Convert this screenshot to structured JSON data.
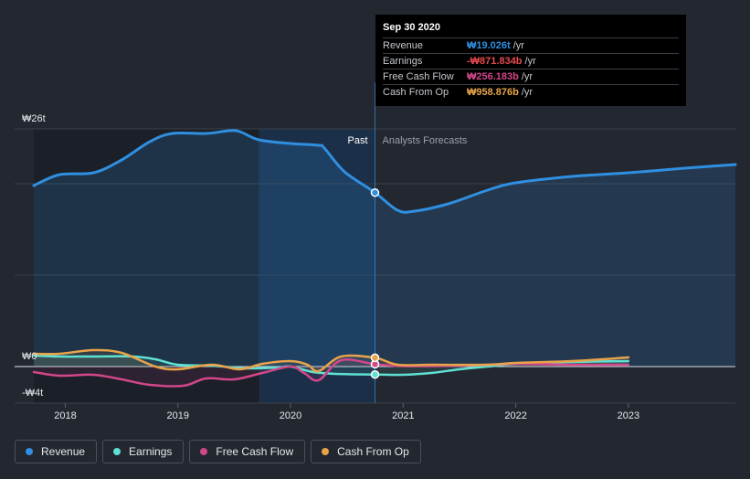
{
  "chart_data": {
    "type": "line",
    "x_unit": "year",
    "xlim": [
      2017.55,
      2023.95
    ],
    "ylim": [
      -4,
      26
    ],
    "y_tick_labels": [
      {
        "label": "₩26t",
        "value": 26
      },
      {
        "label": "₩0",
        "value": 0
      },
      {
        "label": "-₩4t",
        "value": -4
      }
    ],
    "x_ticks": [
      2018,
      2019,
      2020,
      2021,
      2022,
      2023
    ],
    "grid_values": [
      20,
      10,
      0
    ],
    "past_region": [
      2017.72,
      2020.75
    ],
    "highlight_region": [
      2019.72,
      2020.75
    ],
    "divider_x": 2020.75,
    "past_label": "Past",
    "forecast_label": "Analysts Forecasts",
    "series": [
      {
        "name": "Revenue",
        "color": "#2f8fe0",
        "fill": true,
        "points": [
          [
            2017.72,
            19.8
          ],
          [
            2017.95,
            21.0
          ],
          [
            2018.25,
            21.2
          ],
          [
            2018.5,
            22.6
          ],
          [
            2018.75,
            24.6
          ],
          [
            2018.95,
            25.5
          ],
          [
            2019.25,
            25.5
          ],
          [
            2019.45,
            25.8
          ],
          [
            2019.55,
            25.7
          ],
          [
            2019.72,
            24.8
          ],
          [
            2020.0,
            24.4
          ],
          [
            2020.25,
            24.2
          ],
          [
            2020.3,
            23.9
          ],
          [
            2020.48,
            21.3
          ],
          [
            2020.75,
            19.03
          ],
          [
            2020.95,
            17.1
          ],
          [
            2021.1,
            17.0
          ],
          [
            2021.4,
            17.8
          ],
          [
            2021.75,
            19.3
          ],
          [
            2022.0,
            20.1
          ],
          [
            2022.5,
            20.8
          ],
          [
            2023.0,
            21.2
          ],
          [
            2023.5,
            21.7
          ],
          [
            2023.95,
            22.1
          ]
        ]
      },
      {
        "name": "Earnings",
        "color": "#5fe0d2",
        "fill": false,
        "points": [
          [
            2017.72,
            1.2
          ],
          [
            2017.95,
            1.1
          ],
          [
            2018.25,
            1.1
          ],
          [
            2018.6,
            1.1
          ],
          [
            2018.8,
            0.8
          ],
          [
            2019.0,
            0.2
          ],
          [
            2019.3,
            0.1
          ],
          [
            2019.6,
            -0.2
          ],
          [
            2019.9,
            -0.1
          ],
          [
            2020.0,
            0.0
          ],
          [
            2020.2,
            -0.6
          ],
          [
            2020.4,
            -0.8
          ],
          [
            2020.75,
            -0.87
          ],
          [
            2021.0,
            -0.9
          ],
          [
            2021.25,
            -0.7
          ],
          [
            2021.5,
            -0.3
          ],
          [
            2021.75,
            0.0
          ],
          [
            2022.0,
            0.3
          ],
          [
            2022.5,
            0.5
          ],
          [
            2023.0,
            0.6
          ]
        ]
      },
      {
        "name": "Free Cash Flow",
        "color": "#d2478a",
        "fill": false,
        "points": [
          [
            2017.72,
            -0.6
          ],
          [
            2017.95,
            -1.0
          ],
          [
            2018.25,
            -0.9
          ],
          [
            2018.5,
            -1.4
          ],
          [
            2018.75,
            -2.0
          ],
          [
            2019.05,
            -2.1
          ],
          [
            2019.25,
            -1.3
          ],
          [
            2019.5,
            -1.4
          ],
          [
            2019.75,
            -0.7
          ],
          [
            2020.0,
            0.0
          ],
          [
            2020.12,
            -0.7
          ],
          [
            2020.25,
            -1.5
          ],
          [
            2020.45,
            0.7
          ],
          [
            2020.75,
            0.26
          ],
          [
            2021.0,
            0.05
          ],
          [
            2021.5,
            0.1
          ],
          [
            2022.0,
            0.3
          ],
          [
            2022.5,
            0.2
          ],
          [
            2023.0,
            0.2
          ]
        ]
      },
      {
        "name": "Cash From Op",
        "color": "#e8a34a",
        "fill": false,
        "points": [
          [
            2017.72,
            1.4
          ],
          [
            2017.95,
            1.4
          ],
          [
            2018.25,
            1.8
          ],
          [
            2018.5,
            1.5
          ],
          [
            2018.8,
            0.0
          ],
          [
            2019.0,
            -0.3
          ],
          [
            2019.3,
            0.2
          ],
          [
            2019.55,
            -0.3
          ],
          [
            2019.75,
            0.3
          ],
          [
            2020.0,
            0.6
          ],
          [
            2020.15,
            0.2
          ],
          [
            2020.25,
            -0.5
          ],
          [
            2020.45,
            1.1
          ],
          [
            2020.75,
            0.96
          ],
          [
            2020.95,
            0.2
          ],
          [
            2021.25,
            0.2
          ],
          [
            2021.75,
            0.2
          ],
          [
            2022.0,
            0.4
          ],
          [
            2022.5,
            0.6
          ],
          [
            2023.0,
            1.0
          ]
        ]
      }
    ],
    "marker_x": 2020.75
  },
  "tooltip": {
    "title": "Sep 30 2020",
    "rows": [
      {
        "label": "Revenue",
        "value": "₩19.026t",
        "unit": "/yr",
        "color": "#2f8fe0"
      },
      {
        "label": "Earnings",
        "value": "-₩871.834b",
        "unit": "/yr",
        "color": "#e5484d"
      },
      {
        "label": "Free Cash Flow",
        "value": "₩256.183b",
        "unit": "/yr",
        "color": "#d2478a"
      },
      {
        "label": "Cash From Op",
        "value": "₩958.876b",
        "unit": "/yr",
        "color": "#e8a34a"
      }
    ]
  },
  "legend": [
    {
      "label": "Revenue",
      "color": "#2f8fe0"
    },
    {
      "label": "Earnings",
      "color": "#5fe0d2"
    },
    {
      "label": "Free Cash Flow",
      "color": "#d2478a"
    },
    {
      "label": "Cash From Op",
      "color": "#e8a34a"
    }
  ]
}
